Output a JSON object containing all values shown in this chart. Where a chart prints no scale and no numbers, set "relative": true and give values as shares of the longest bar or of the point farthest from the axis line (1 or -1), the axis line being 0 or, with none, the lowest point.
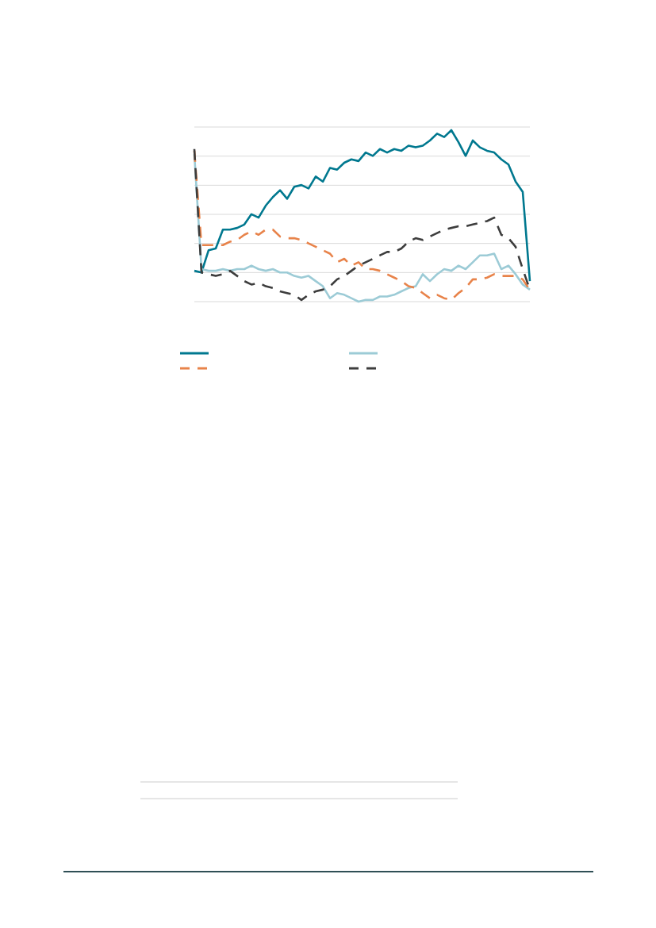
{
  "chart_data": {
    "type": "line",
    "relative": true,
    "grid": "y",
    "marker": "none",
    "categories": [
      null,
      null,
      null,
      null,
      null,
      null,
      null,
      null,
      null,
      null,
      null,
      null,
      null,
      null,
      null,
      null,
      null,
      null,
      null,
      null,
      null,
      null,
      null,
      null,
      null,
      null,
      null,
      null,
      null,
      null,
      null,
      null,
      null,
      null,
      null,
      null,
      null,
      null,
      null,
      null,
      null,
      null,
      null,
      null,
      null,
      null,
      null,
      null
    ],
    "series": [
      {
        "color": "#00788f",
        "line_style": "solid",
        "values": [
          0.18,
          0.17,
          0.3,
          0.31,
          0.42,
          0.42,
          0.43,
          0.45,
          0.51,
          0.49,
          0.56,
          0.61,
          0.65,
          0.6,
          0.67,
          0.68,
          0.66,
          0.73,
          0.7,
          0.78,
          0.77,
          0.81,
          0.83,
          0.82,
          0.87,
          0.85,
          0.89,
          0.87,
          0.89,
          0.88,
          0.91,
          0.9,
          0.91,
          0.94,
          0.98,
          0.96,
          1.0,
          0.93,
          0.85,
          0.94,
          0.9,
          0.88,
          0.87,
          0.83,
          0.8,
          0.7,
          0.64,
          0.12
        ]
      },
      {
        "color": "#9ccbd6",
        "line_style": "solid",
        "values": [
          0.86,
          0.19,
          0.18,
          0.18,
          0.19,
          0.18,
          0.19,
          0.19,
          0.21,
          0.19,
          0.18,
          0.19,
          0.17,
          0.17,
          0.15,
          0.14,
          0.15,
          0.12,
          0.09,
          0.02,
          0.05,
          0.04,
          0.02,
          0,
          0.01,
          0.01,
          0.03,
          0.03,
          0.04,
          0.06,
          0.08,
          0.09,
          0.16,
          0.12,
          0.16,
          0.19,
          0.18,
          0.21,
          0.19,
          0.23,
          0.27,
          0.27,
          0.28,
          0.19,
          0.21,
          0.16,
          0.1,
          0.07
        ]
      },
      {
        "color": "#e8834a",
        "line_style": "dashed",
        "values": [
          0.88,
          0.33,
          0.33,
          0.33,
          0.33,
          0.35,
          0.36,
          0.39,
          0.41,
          0.39,
          0.42,
          0.42,
          0.38,
          0.37,
          0.37,
          0.36,
          0.34,
          0.32,
          0.3,
          0.28,
          0.23,
          0.25,
          0.21,
          0.23,
          0.19,
          0.19,
          0.18,
          0.16,
          0.14,
          0.12,
          0.09,
          0.08,
          0.05,
          0.02,
          0.04,
          0.02,
          0.01,
          0.05,
          0.08,
          0.13,
          0.13,
          0.14,
          0.16,
          0.15,
          0.15,
          0.15,
          0.13,
          0.07
        ]
      },
      {
        "color": "#3d3d3d",
        "line_style": "dashed",
        "values": [
          0.89,
          0.17,
          0.16,
          0.15,
          0.16,
          0.18,
          0.15,
          0.12,
          0.1,
          0.11,
          0.09,
          0.08,
          0.06,
          0.05,
          0.04,
          0.01,
          0.04,
          0.06,
          0.07,
          0.09,
          0.13,
          0.15,
          0.18,
          0.21,
          0.23,
          0.25,
          0.27,
          0.29,
          0.29,
          0.31,
          0.35,
          0.37,
          0.36,
          0.38,
          0.4,
          0.42,
          0.43,
          0.44,
          0.44,
          0.45,
          0.46,
          0.47,
          0.49,
          0.39,
          0.37,
          0.32,
          0.19,
          0.07
        ]
      }
    ]
  }
}
